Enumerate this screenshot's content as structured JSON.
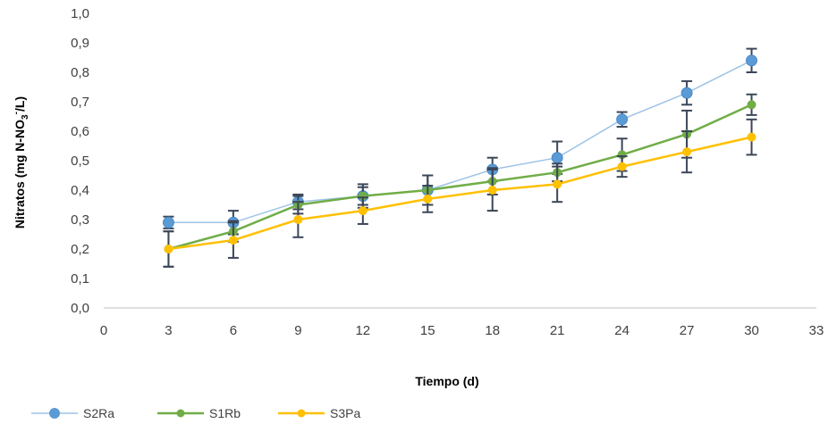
{
  "chart_data": {
    "type": "line",
    "xlabel": "Tiempo (d)",
    "ylabel_main": "Nitratos (mg N-NO",
    "ylabel_sub": "3",
    "ylabel_sup": "-",
    "ylabel_end": "/L)",
    "xlim": [
      0,
      33
    ],
    "ylim": [
      0,
      1.0
    ],
    "xticks": [
      "0",
      "3",
      "6",
      "9",
      "12",
      "15",
      "18",
      "21",
      "24",
      "27",
      "30",
      "33"
    ],
    "yticks": [
      "0,0",
      "0,1",
      "0,2",
      "0,3",
      "0,4",
      "0,5",
      "0,6",
      "0,7",
      "0,8",
      "0,9",
      "1,0"
    ],
    "x": [
      3,
      6,
      9,
      12,
      15,
      18,
      21,
      24,
      27,
      30
    ],
    "legend_position": "bottom-left",
    "series": [
      {
        "name": "S2Ra",
        "color": "#5B9BD5",
        "line_color": "#9DC3E6",
        "marker_size": "large",
        "values": [
          0.29,
          0.29,
          0.36,
          0.38,
          0.4,
          0.47,
          0.51,
          0.64,
          0.73,
          0.84
        ],
        "errors": [
          0.02,
          0.04,
          0.025,
          0.04,
          0.05,
          0.04,
          0.055,
          0.025,
          0.04,
          0.04
        ]
      },
      {
        "name": "S1Rb",
        "color": "#70AD47",
        "line_color": "#70AD47",
        "marker_size": "small",
        "values": [
          0.2,
          0.26,
          0.35,
          0.38,
          0.4,
          0.43,
          0.46,
          0.52,
          0.59,
          0.69
        ],
        "errors": [
          0.06,
          0.035,
          0.03,
          0.03,
          0.05,
          0.045,
          0.03,
          0.055,
          0.08,
          0.035
        ]
      },
      {
        "name": "S3Pa",
        "color": "#FFC000",
        "line_color": "#FFC000",
        "marker_size": "small",
        "values": [
          0.2,
          0.23,
          0.3,
          0.33,
          0.37,
          0.4,
          0.42,
          0.48,
          0.53,
          0.58
        ],
        "errors": [
          0.06,
          0.06,
          0.06,
          0.045,
          0.045,
          0.07,
          0.06,
          0.035,
          0.07,
          0.06
        ]
      }
    ]
  }
}
